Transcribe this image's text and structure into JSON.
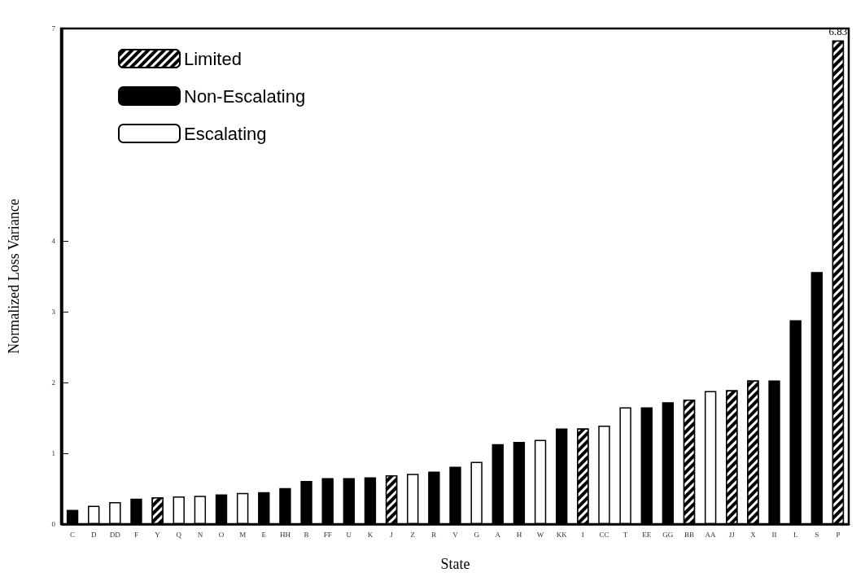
{
  "chart_data": {
    "type": "bar",
    "xlabel": "State",
    "ylabel": "Normalized Loss Variance",
    "categories": [
      "C",
      "D",
      "DD",
      "F",
      "Y",
      "Q",
      "N",
      "O",
      "M",
      "E",
      "HH",
      "B",
      "FF",
      "U",
      "K",
      "J",
      "Z",
      "R",
      "V",
      "G",
      "A",
      "H",
      "W",
      "KK",
      "I",
      "CC",
      "T",
      "EE",
      "GG",
      "BB",
      "AA",
      "JJ",
      "X",
      "II",
      "L",
      "S",
      "P"
    ],
    "series": [
      {
        "name": "Limited",
        "color": "#000000",
        "values": [
          null,
          null,
          null,
          null,
          0.38,
          null,
          null,
          null,
          null,
          null,
          null,
          null,
          null,
          null,
          null,
          0.69,
          null,
          null,
          null,
          null,
          null,
          null,
          null,
          null,
          1.35,
          null,
          null,
          null,
          null,
          1.76,
          null,
          1.89,
          2.03,
          null,
          null,
          null,
          6.83
        ],
        "value_labels": [
          null,
          null,
          null,
          null,
          null,
          null,
          null,
          null,
          null,
          null,
          null,
          null,
          null,
          null,
          null,
          null,
          null,
          null,
          null,
          null,
          null,
          null,
          null,
          null,
          null,
          null,
          null,
          null,
          null,
          null,
          null,
          null,
          null,
          null,
          null,
          null,
          "6.83"
        ]
      },
      {
        "name": "Non-Escalating",
        "color": "#000000",
        "values": [
          0.2,
          null,
          null,
          0.36,
          null,
          null,
          null,
          0.42,
          null,
          0.45,
          0.51,
          0.61,
          0.65,
          0.65,
          0.66,
          null,
          null,
          0.74,
          0.81,
          null,
          1.13,
          1.16,
          null,
          1.35,
          null,
          null,
          null,
          1.65,
          1.72,
          null,
          null,
          null,
          null,
          2.03,
          2.88,
          3.56,
          null
        ]
      },
      {
        "name": "Escalating",
        "color": "#ffffff",
        "values": [
          null,
          0.26,
          0.31,
          null,
          null,
          0.39,
          0.4,
          null,
          0.44,
          null,
          null,
          null,
          null,
          null,
          null,
          null,
          0.71,
          null,
          null,
          0.88,
          null,
          null,
          1.19,
          null,
          null,
          1.39,
          1.65,
          null,
          null,
          null,
          1.88,
          null,
          null,
          null,
          null,
          null,
          null
        ]
      }
    ],
    "ylim": [
      0,
      7
    ],
    "yticks": [
      0,
      1,
      2,
      3,
      4,
      7
    ],
    "grid": false,
    "legend": "top left"
  }
}
